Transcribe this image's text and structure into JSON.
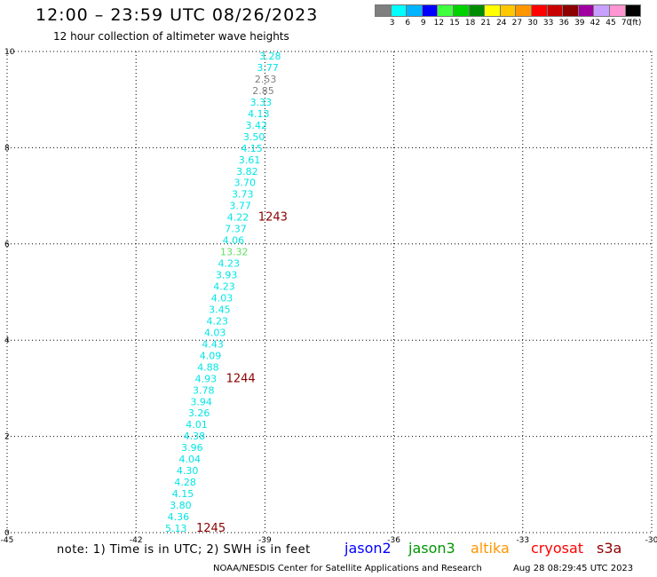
{
  "header": {
    "title": "12:00 – 23:59 UTC 08/26/2023",
    "subtitle": "12 hour collection of altimeter wave heights"
  },
  "colorbar": {
    "colors": [
      "#7f7f7f",
      "#00ffff",
      "#00b4ff",
      "#0000ff",
      "#3fff3f",
      "#00d200",
      "#008c00",
      "#ffff00",
      "#ffc800",
      "#ff9600",
      "#ff0000",
      "#c80000",
      "#8c0000",
      "#a000a0",
      "#c8a0ff",
      "#ff96d2",
      "#000000"
    ],
    "labels": [
      "3",
      "6",
      "9",
      "12",
      "15",
      "18",
      "21",
      "24",
      "27",
      "30",
      "33",
      "36",
      "39",
      "42",
      "45",
      "70"
    ],
    "unit": "(ft)"
  },
  "axes": {
    "x_ticks": [
      "-45",
      "-42",
      "-39",
      "-36",
      "-33",
      "-30"
    ],
    "y_ticks": [
      "0",
      "2",
      "4",
      "6",
      "8",
      "10"
    ]
  },
  "readings": [
    {
      "value": "3.28",
      "color": "#00e5e5"
    },
    {
      "value": "3.77",
      "color": "#00e5e5"
    },
    {
      "value": "2.53",
      "color": "#7f7f7f"
    },
    {
      "value": "2.85",
      "color": "#7f7f7f"
    },
    {
      "value": "3.33",
      "color": "#00e5e5"
    },
    {
      "value": "4.13",
      "color": "#00e5e5"
    },
    {
      "value": "3.42",
      "color": "#00e5e5"
    },
    {
      "value": "3.50",
      "color": "#00e5e5"
    },
    {
      "value": "4.15",
      "color": "#00e5e5"
    },
    {
      "value": "3.61",
      "color": "#00e5e5"
    },
    {
      "value": "3.82",
      "color": "#00e5e5"
    },
    {
      "value": "3.70",
      "color": "#00e5e5"
    },
    {
      "value": "3.73",
      "color": "#00e5e5"
    },
    {
      "value": "3.77",
      "color": "#00e5e5"
    },
    {
      "value": "4.22",
      "color": "#00e5e5"
    },
    {
      "value": "7.37",
      "color": "#00e5e5"
    },
    {
      "value": "4.06",
      "color": "#00e5e5"
    },
    {
      "value": "13.32",
      "color": "#5fdc5f"
    },
    {
      "value": "4.23",
      "color": "#00e5e5"
    },
    {
      "value": "3.93",
      "color": "#00e5e5"
    },
    {
      "value": "4.23",
      "color": "#00e5e5"
    },
    {
      "value": "4.03",
      "color": "#00e5e5"
    },
    {
      "value": "3.45",
      "color": "#00e5e5"
    },
    {
      "value": "4.23",
      "color": "#00e5e5"
    },
    {
      "value": "4.03",
      "color": "#00e5e5"
    },
    {
      "value": "4.43",
      "color": "#00e5e5"
    },
    {
      "value": "4.09",
      "color": "#00e5e5"
    },
    {
      "value": "4.88",
      "color": "#00e5e5"
    },
    {
      "value": "4.93",
      "color": "#00e5e5"
    },
    {
      "value": "3.78",
      "color": "#00e5e5"
    },
    {
      "value": "3.94",
      "color": "#00e5e5"
    },
    {
      "value": "3.26",
      "color": "#00e5e5"
    },
    {
      "value": "4.01",
      "color": "#00e5e5"
    },
    {
      "value": "4.38",
      "color": "#00e5e5"
    },
    {
      "value": "3.96",
      "color": "#00e5e5"
    },
    {
      "value": "4.04",
      "color": "#00e5e5"
    },
    {
      "value": "4.30",
      "color": "#00e5e5"
    },
    {
      "value": "4.28",
      "color": "#00e5e5"
    },
    {
      "value": "4.15",
      "color": "#00e5e5"
    },
    {
      "value": "3.80",
      "color": "#00e5e5"
    },
    {
      "value": "4.36",
      "color": "#00e5e5"
    },
    {
      "value": "5.13",
      "color": "#00e5e5"
    }
  ],
  "time_labels": [
    {
      "text": "1243",
      "color": "#8b0000"
    },
    {
      "text": "1244",
      "color": "#8b0000"
    },
    {
      "text": "1245",
      "color": "#8b0000"
    }
  ],
  "note": "note:  1) Time is in UTC;  2) SWH is in feet",
  "satellites": [
    {
      "name": "jason2",
      "color": "#0000ff"
    },
    {
      "name": "jason3",
      "color": "#009600"
    },
    {
      "name": "altika",
      "color": "#ff9600"
    },
    {
      "name": "cryosat",
      "color": "#ff0000"
    },
    {
      "name": "s3a",
      "color": "#8b0000"
    }
  ],
  "footer": {
    "credit": "NOAA/NESDIS Center for Satellite Applications and Research",
    "timestamp": "Aug 28 08:29:45 UTC 2023"
  }
}
